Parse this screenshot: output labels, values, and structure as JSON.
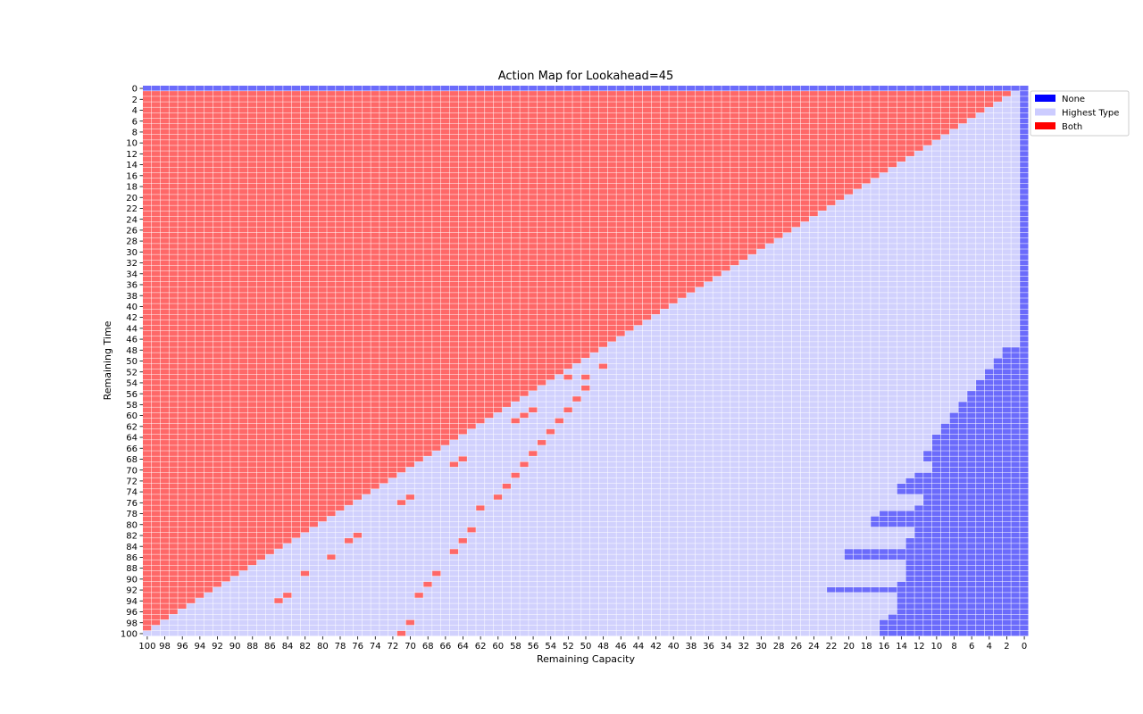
{
  "chart_data": {
    "type": "heatmap",
    "title": "Action Map for Lookahead=45",
    "xlabel": "Remaining Capacity",
    "ylabel": "Remaining Time",
    "x_order": "descending",
    "xlim": [
      100,
      0
    ],
    "ylim": [
      0,
      100
    ],
    "x_tick_labels": [
      "100",
      "98",
      "96",
      "94",
      "92",
      "90",
      "88",
      "86",
      "84",
      "82",
      "80",
      "78",
      "76",
      "74",
      "72",
      "70",
      "68",
      "66",
      "64",
      "62",
      "60",
      "58",
      "56",
      "54",
      "52",
      "50",
      "48",
      "46",
      "44",
      "42",
      "40",
      "38",
      "36",
      "34",
      "32",
      "30",
      "28",
      "26",
      "24",
      "22",
      "20",
      "18",
      "16",
      "14",
      "12",
      "10",
      "8",
      "6",
      "4",
      "2",
      "0"
    ],
    "y_tick_labels": [
      "0",
      "2",
      "4",
      "6",
      "8",
      "10",
      "12",
      "14",
      "16",
      "18",
      "20",
      "22",
      "24",
      "26",
      "28",
      "30",
      "32",
      "34",
      "36",
      "38",
      "40",
      "42",
      "44",
      "46",
      "48",
      "50",
      "52",
      "54",
      "56",
      "58",
      "60",
      "62",
      "64",
      "66",
      "68",
      "70",
      "72",
      "74",
      "76",
      "78",
      "80",
      "82",
      "84",
      "86",
      "88",
      "90",
      "92",
      "94",
      "96",
      "98",
      "100"
    ],
    "grid": true,
    "legend": {
      "placement": "upper-right-outside",
      "entries": [
        {
          "name": "None",
          "color": "#0000ff"
        },
        {
          "name": "Highest Type",
          "color": "#ccccff"
        },
        {
          "name": "Both",
          "color": "#ff0000"
        }
      ]
    },
    "cell_colors": {
      "None": "#6b6bfb",
      "Highest Type": "#d1d1fd",
      "Both": "#fe6868"
    },
    "regions": {
      "row_0": "None",
      "both_region": "Both where remaining_time >= 1 and remaining_capacity >= remaining_time + 1",
      "highest_type_region": "Highest Type where remaining_time >= 1 and remaining_capacity <= remaining_time, except None region",
      "none_column": "remaining_capacity = 0 for all times",
      "none_right_triangle": "remaining_capacity <= remaining_time - 46 for remaining_time >= 48",
      "none_block_rows": "remaining_time >= 65, remaining_capacity 1..10 (staircase out to 11-14)"
    },
    "none_extents": [
      {
        "t_from": 48,
        "t_to": 49,
        "max_capacity": 2
      },
      {
        "t_from": 50,
        "t_to": 51,
        "max_capacity": 3
      },
      {
        "t_from": 52,
        "t_to": 53,
        "max_capacity": 4
      },
      {
        "t_from": 54,
        "t_to": 55,
        "max_capacity": 5
      },
      {
        "t_from": 56,
        "t_to": 57,
        "max_capacity": 6
      },
      {
        "t_from": 58,
        "t_to": 59,
        "max_capacity": 7
      },
      {
        "t_from": 60,
        "t_to": 61,
        "max_capacity": 8
      },
      {
        "t_from": 62,
        "t_to": 63,
        "max_capacity": 9
      },
      {
        "t_from": 64,
        "t_to": 64,
        "max_capacity": 10
      },
      {
        "t_from": 65,
        "t_to": 66,
        "max_capacity": 10
      },
      {
        "t_from": 67,
        "t_to": 68,
        "max_capacity": 11
      },
      {
        "t_from": 69,
        "t_to": 70,
        "max_capacity": 10
      },
      {
        "t_from": 71,
        "t_to": 71,
        "max_capacity": 12
      },
      {
        "t_from": 72,
        "t_to": 72,
        "max_capacity": 13
      },
      {
        "t_from": 73,
        "t_to": 74,
        "max_capacity": 14
      },
      {
        "t_from": 75,
        "t_to": 76,
        "max_capacity": 11
      },
      {
        "t_from": 77,
        "t_to": 77,
        "max_capacity": 12
      },
      {
        "t_from": 78,
        "t_to": 78,
        "max_capacity": 16
      },
      {
        "t_from": 79,
        "t_to": 80,
        "max_capacity": 17
      },
      {
        "t_from": 81,
        "t_to": 82,
        "max_capacity": 12
      },
      {
        "t_from": 83,
        "t_to": 84,
        "max_capacity": 13
      },
      {
        "t_from": 85,
        "t_to": 86,
        "max_capacity": 20
      },
      {
        "t_from": 87,
        "t_to": 90,
        "max_capacity": 13
      },
      {
        "t_from": 91,
        "t_to": 91,
        "max_capacity": 14
      },
      {
        "t_from": 92,
        "t_to": 92,
        "max_capacity": 22
      },
      {
        "t_from": 93,
        "t_to": 96,
        "max_capacity": 14
      },
      {
        "t_from": 97,
        "t_to": 97,
        "max_capacity": 15
      },
      {
        "t_from": 98,
        "t_to": 100,
        "max_capacity": 16
      }
    ],
    "both_dots": [
      {
        "t": 51,
        "c": 48
      },
      {
        "t": 53,
        "c": 50
      },
      {
        "t": 53,
        "c": 52
      },
      {
        "t": 55,
        "c": 50
      },
      {
        "t": 57,
        "c": 51
      },
      {
        "t": 59,
        "c": 52
      },
      {
        "t": 59,
        "c": 56
      },
      {
        "t": 60,
        "c": 57
      },
      {
        "t": 61,
        "c": 58
      },
      {
        "t": 61,
        "c": 53
      },
      {
        "t": 63,
        "c": 54
      },
      {
        "t": 65,
        "c": 55
      },
      {
        "t": 67,
        "c": 56
      },
      {
        "t": 68,
        "c": 64
      },
      {
        "t": 69,
        "c": 65
      },
      {
        "t": 69,
        "c": 57
      },
      {
        "t": 71,
        "c": 58
      },
      {
        "t": 73,
        "c": 59
      },
      {
        "t": 75,
        "c": 60
      },
      {
        "t": 75,
        "c": 70
      },
      {
        "t": 76,
        "c": 71
      },
      {
        "t": 77,
        "c": 62
      },
      {
        "t": 81,
        "c": 63
      },
      {
        "t": 82,
        "c": 76
      },
      {
        "t": 83,
        "c": 77
      },
      {
        "t": 83,
        "c": 64
      },
      {
        "t": 85,
        "c": 65
      },
      {
        "t": 86,
        "c": 79
      },
      {
        "t": 89,
        "c": 82
      },
      {
        "t": 89,
        "c": 67
      },
      {
        "t": 91,
        "c": 68
      },
      {
        "t": 93,
        "c": 69
      },
      {
        "t": 93,
        "c": 84
      },
      {
        "t": 94,
        "c": 85
      },
      {
        "t": 98,
        "c": 70
      },
      {
        "t": 100,
        "c": 71
      }
    ]
  }
}
